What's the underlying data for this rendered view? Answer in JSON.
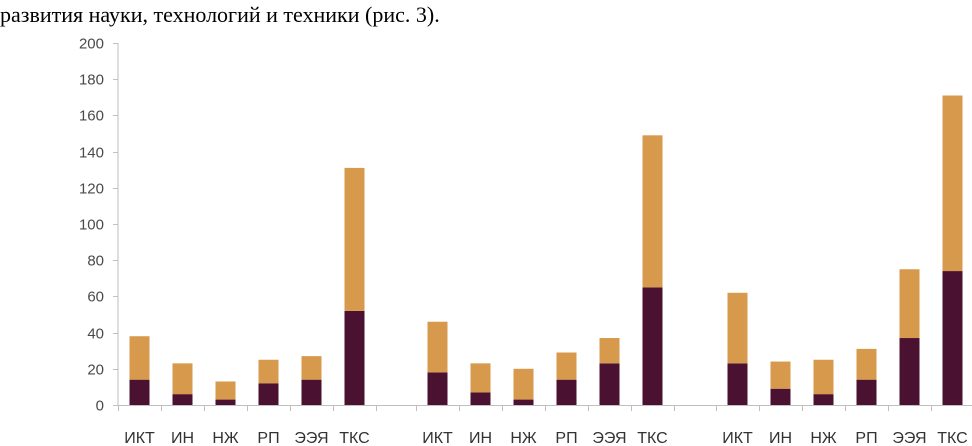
{
  "caption": "развития науки, технологий и техники (рис. 3).",
  "colors": {
    "bottom": "#4a1230",
    "top": "#d79a4d",
    "axis": "#bfbfbf"
  },
  "chart_data": {
    "type": "bar",
    "stacked": true,
    "ylim": [
      0,
      200
    ],
    "yticks": [
      0,
      20,
      40,
      60,
      80,
      100,
      120,
      140,
      160,
      180,
      200
    ],
    "groups": [
      {
        "categories": [
          "ИКТ",
          "ИН",
          "НЖ",
          "РП",
          "ЭЭЯ",
          "ТКС"
        ],
        "bottom": [
          14,
          6,
          3,
          12,
          14,
          52
        ],
        "top": [
          24,
          17,
          10,
          13,
          13,
          79
        ]
      },
      {
        "categories": [
          "ИКТ",
          "ИН",
          "НЖ",
          "РП",
          "ЭЭЯ",
          "ТКС"
        ],
        "bottom": [
          18,
          7,
          3,
          14,
          23,
          65
        ],
        "top": [
          28,
          16,
          17,
          15,
          14,
          84
        ]
      },
      {
        "categories": [
          "ИКТ",
          "ИН",
          "НЖ",
          "РП",
          "ЭЭЯ",
          "ТКС"
        ],
        "bottom": [
          23,
          9,
          6,
          14,
          37,
          74
        ],
        "top": [
          39,
          15,
          19,
          17,
          38,
          97
        ]
      }
    ]
  }
}
